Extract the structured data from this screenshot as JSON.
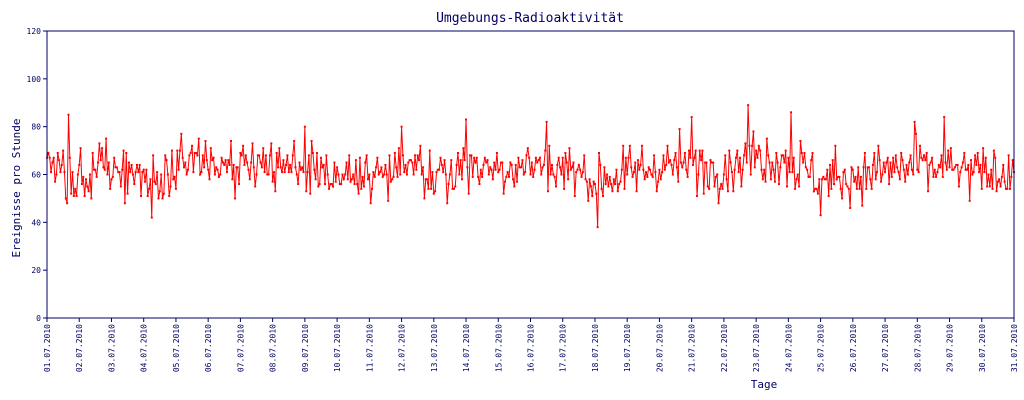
{
  "chart_data": {
    "type": "line",
    "title": "Umgebungs-Radioaktivität",
    "xlabel": "Tage",
    "ylabel": "Ereignisse pro Stunde",
    "ylim": [
      0,
      120
    ],
    "yticks": [
      0,
      20,
      40,
      60,
      80,
      100,
      120
    ],
    "xlim": [
      "01.07.2010",
      "31.07.2010"
    ],
    "xticks": [
      "01.07.2010",
      "02.07.2010",
      "03.07.2010",
      "04.07.2010",
      "05.07.2010",
      "06.07.2010",
      "07.07.2010",
      "08.07.2010",
      "09.07.2010",
      "10.07.2010",
      "11.07.2010",
      "12.07.2010",
      "13.07.2010",
      "14.07.2010",
      "15.07.2010",
      "16.07.2010",
      "17.07.2010",
      "18.07.2010",
      "19.07.2010",
      "20.07.2010",
      "21.07.2010",
      "22.07.2010",
      "23.07.2010",
      "24.07.2010",
      "25.07.2010",
      "26.07.2010",
      "27.07.2010",
      "28.07.2010",
      "29.07.2010",
      "30.07.2010",
      "31.07.2010"
    ],
    "grid": false,
    "series": [
      {
        "color": "#ff0000",
        "sampling": "hourly",
        "daily_mean": [
          62,
          60,
          62,
          58,
          63,
          64,
          62,
          62,
          63,
          61,
          60,
          62,
          59,
          64,
          63,
          64,
          63,
          58,
          60,
          64,
          64,
          63,
          68,
          66,
          58,
          59,
          62,
          63,
          62,
          60,
          62
        ],
        "marked_peaks": [
          {
            "x": "01.07.2010 16:00",
            "y": 85
          },
          {
            "x": "04.07.2010 06:00",
            "y": 42
          },
          {
            "x": "09.07.2010 00:00",
            "y": 80
          },
          {
            "x": "12.07.2010 00:00",
            "y": 80
          },
          {
            "x": "14.07.2010 00:00",
            "y": 83
          },
          {
            "x": "16.07.2010 12:00",
            "y": 82
          },
          {
            "x": "18.07.2010 02:00",
            "y": 38
          },
          {
            "x": "21.07.2010 00:00",
            "y": 84
          },
          {
            "x": "22.07.2010 18:00",
            "y": 89
          },
          {
            "x": "24.07.2010 02:00",
            "y": 86
          },
          {
            "x": "25.07.2010 00:00",
            "y": 43
          },
          {
            "x": "27.07.2010 22:00",
            "y": 82
          },
          {
            "x": "28.07.2010 20:00",
            "y": 84
          }
        ]
      }
    ]
  }
}
